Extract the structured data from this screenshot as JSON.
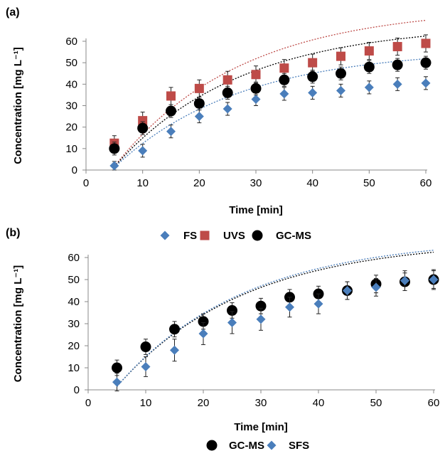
{
  "chart_data": [
    {
      "panel_label": "(a)",
      "type": "scatter",
      "xlabel": "Time [min]",
      "ylabel": "Concentration [mg L⁻¹]",
      "xlim": [
        0,
        60
      ],
      "ylim": [
        0,
        60
      ],
      "xticks": [
        0,
        10,
        20,
        30,
        40,
        50,
        60
      ],
      "yticks": [
        0,
        10,
        20,
        30,
        40,
        50,
        60
      ],
      "legend_position": "bottom",
      "series": [
        {
          "name": "FS",
          "marker": "diamond",
          "color": "#4a7ebb",
          "x": [
            5,
            10,
            15,
            20,
            25,
            30,
            35,
            40,
            45,
            50,
            55,
            60
          ],
          "y": [
            2,
            9,
            18,
            25,
            28.5,
            33,
            35.5,
            36,
            37,
            38.5,
            40,
            40.5
          ],
          "err": [
            2,
            3,
            3,
            3,
            3,
            3,
            3,
            3,
            3,
            3,
            3,
            3
          ],
          "fit": {
            "a": 56.5,
            "k": 0.045
          }
        },
        {
          "name": "UVS",
          "marker": "square",
          "color": "#be4b48",
          "x": [
            5,
            10,
            15,
            20,
            25,
            30,
            35,
            40,
            45,
            50,
            55,
            60
          ],
          "y": [
            12.5,
            23,
            34.5,
            38,
            42,
            44.5,
            47.5,
            50,
            53,
            55.5,
            57.5,
            59
          ],
          "err": [
            3.5,
            4,
            4,
            4,
            4,
            4,
            4,
            4,
            4,
            4,
            4,
            4
          ],
          "fit": {
            "a": 76,
            "k": 0.045
          }
        },
        {
          "name": "GC-MS",
          "marker": "circle",
          "color": "#000000",
          "x": [
            5,
            10,
            15,
            20,
            25,
            30,
            35,
            40,
            45,
            50,
            55,
            60
          ],
          "y": [
            10,
            19.5,
            27.5,
            31,
            36,
            38,
            42,
            43.5,
            45,
            48,
            49,
            50
          ],
          "err": [
            3,
            3,
            3,
            3,
            3,
            3,
            3,
            3,
            3,
            3,
            3,
            3
          ],
          "fit": {
            "a": 68,
            "k": 0.045
          }
        }
      ]
    },
    {
      "panel_label": "(b)",
      "type": "scatter",
      "xlabel": "Time [min]",
      "ylabel": "Concentration [mg L⁻¹]",
      "xlim": [
        0,
        60
      ],
      "ylim": [
        0,
        60
      ],
      "xticks": [
        0,
        10,
        20,
        30,
        40,
        50,
        60
      ],
      "yticks": [
        0,
        10,
        20,
        30,
        40,
        50,
        60
      ],
      "legend_position": "bottom",
      "series": [
        {
          "name": "GC-MS",
          "marker": "circle",
          "color": "#000000",
          "x": [
            5,
            10,
            15,
            20,
            25,
            30,
            35,
            40,
            45,
            50,
            55,
            60
          ],
          "y": [
            10,
            19.5,
            27.5,
            31,
            36,
            38,
            42,
            43.5,
            45,
            48,
            49,
            50
          ],
          "err": [
            3.5,
            3.5,
            3.5,
            3.5,
            3.5,
            3.5,
            3.5,
            3.5,
            4,
            4,
            4,
            4
          ],
          "fit": {
            "a": 68,
            "k": 0.045
          }
        },
        {
          "name": "SFS",
          "marker": "diamond",
          "color": "#4a7ebb",
          "x": [
            5,
            10,
            15,
            20,
            25,
            30,
            35,
            40,
            45,
            50,
            55,
            60
          ],
          "y": [
            3.5,
            10.5,
            18,
            25.5,
            30.5,
            32,
            37.5,
            39,
            45,
            46.5,
            49.5,
            50
          ],
          "err": [
            4,
            4.5,
            5,
            5,
            5,
            5,
            4.5,
            4.5,
            4,
            4,
            4.5,
            4.5
          ],
          "fit": {
            "a": 69,
            "k": 0.045
          }
        }
      ]
    }
  ]
}
